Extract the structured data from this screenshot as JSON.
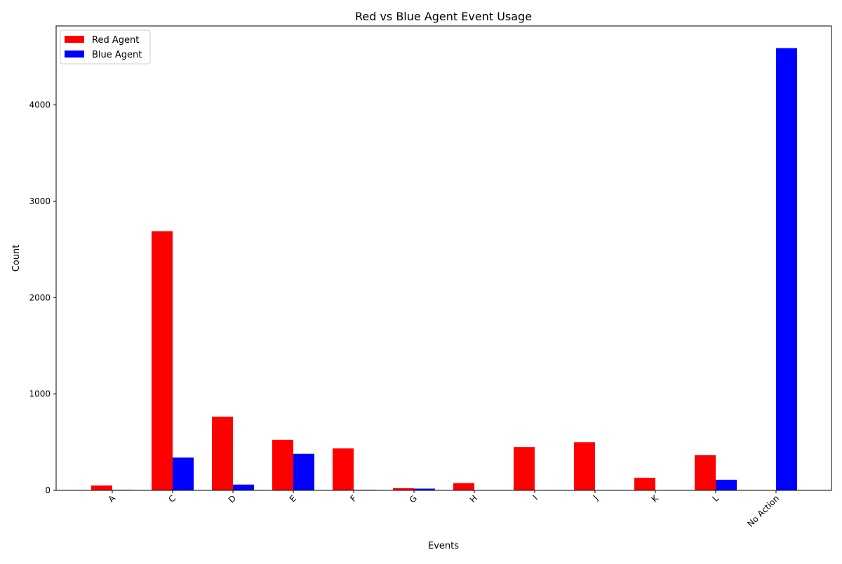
{
  "chart_data": {
    "type": "bar",
    "title": "Red vs Blue Agent Event Usage",
    "xlabel": "Events",
    "ylabel": "Count",
    "categories": [
      "A",
      "C",
      "D",
      "E",
      "F",
      "G",
      "H",
      "I",
      "J",
      "K",
      "L",
      "No Action"
    ],
    "series": [
      {
        "name": "Red Agent",
        "color": "#ff0000",
        "values": [
          50,
          2690,
          765,
          525,
          435,
          22,
          75,
          450,
          500,
          130,
          365,
          0
        ]
      },
      {
        "name": "Blue Agent",
        "color": "#0000ff",
        "values": [
          5,
          340,
          60,
          380,
          5,
          18,
          0,
          0,
          0,
          0,
          110,
          4590
        ]
      }
    ],
    "ylim": [
      0,
      4820
    ],
    "yticks": [
      0,
      1000,
      2000,
      3000,
      4000
    ],
    "grid": false,
    "legend_position": "top-left"
  }
}
